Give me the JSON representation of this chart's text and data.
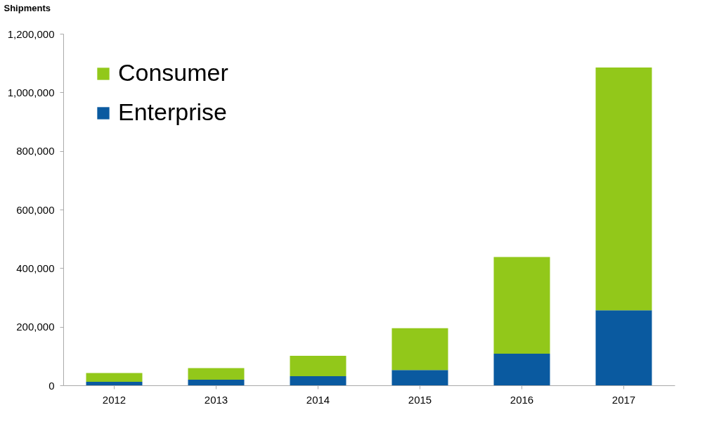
{
  "chart_data": {
    "type": "bar",
    "stacked": true,
    "ylabel": "Shipments",
    "categories": [
      "2012",
      "2013",
      "2014",
      "2015",
      "2016",
      "2017"
    ],
    "series": [
      {
        "name": "Enterprise",
        "color": "#0a5aa0",
        "values": [
          12000,
          19000,
          31000,
          52000,
          108000,
          256000
        ]
      },
      {
        "name": "Consumer",
        "color": "#92c81a",
        "values": [
          30000,
          40000,
          70000,
          143000,
          330000,
          829000
        ]
      }
    ],
    "ylim": [
      0,
      1200000
    ],
    "yticks": [
      0,
      {
        "value": 200000,
        "label": "200,000"
      },
      {
        "value": 400000,
        "label": "400,000"
      },
      {
        "value": 600000,
        "label": "600,000"
      },
      {
        "value": 800000,
        "label": "800,000"
      },
      {
        "value": 1000000,
        "label": "1,000,000"
      },
      {
        "value": 1200000,
        "label": "1,200,000"
      }
    ],
    "grid": false,
    "legend": "top left"
  }
}
